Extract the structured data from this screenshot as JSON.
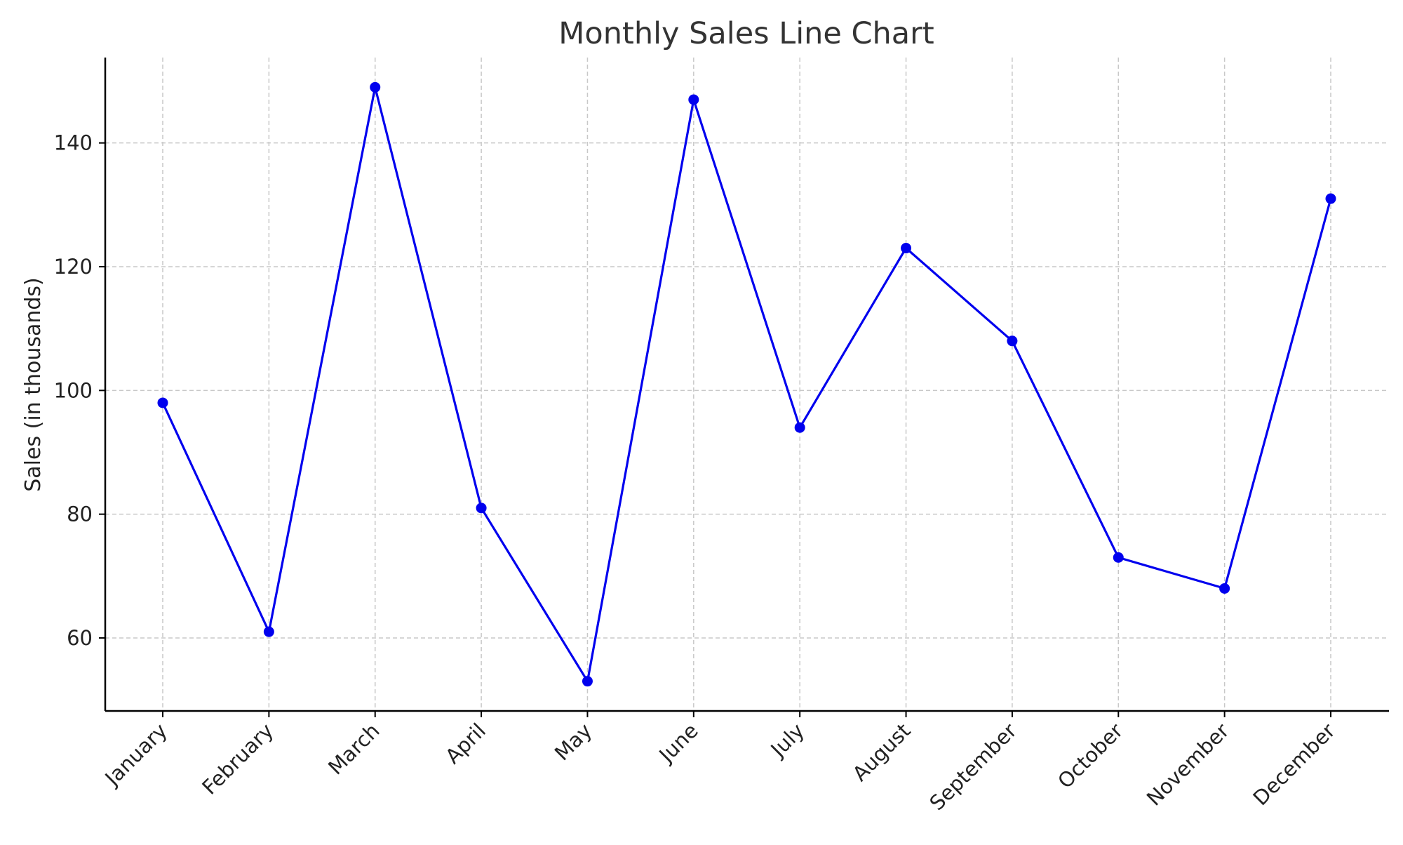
{
  "chart_data": {
    "type": "line",
    "title": "Monthly Sales Line Chart",
    "xlabel": "",
    "ylabel": "Sales (in thousands)",
    "categories": [
      "January",
      "February",
      "March",
      "April",
      "May",
      "June",
      "July",
      "August",
      "September",
      "October",
      "November",
      "December"
    ],
    "series": [
      {
        "values": [
          98,
          61,
          149,
          81,
          53,
          147,
          94,
          123,
          108,
          73,
          68,
          131
        ],
        "color": "#0000ee",
        "marker": "circle"
      }
    ],
    "ylim": [
      48.2,
      153.8
    ],
    "yticks": [
      60,
      80,
      100,
      120,
      140
    ],
    "grid": true,
    "legend": "none"
  }
}
